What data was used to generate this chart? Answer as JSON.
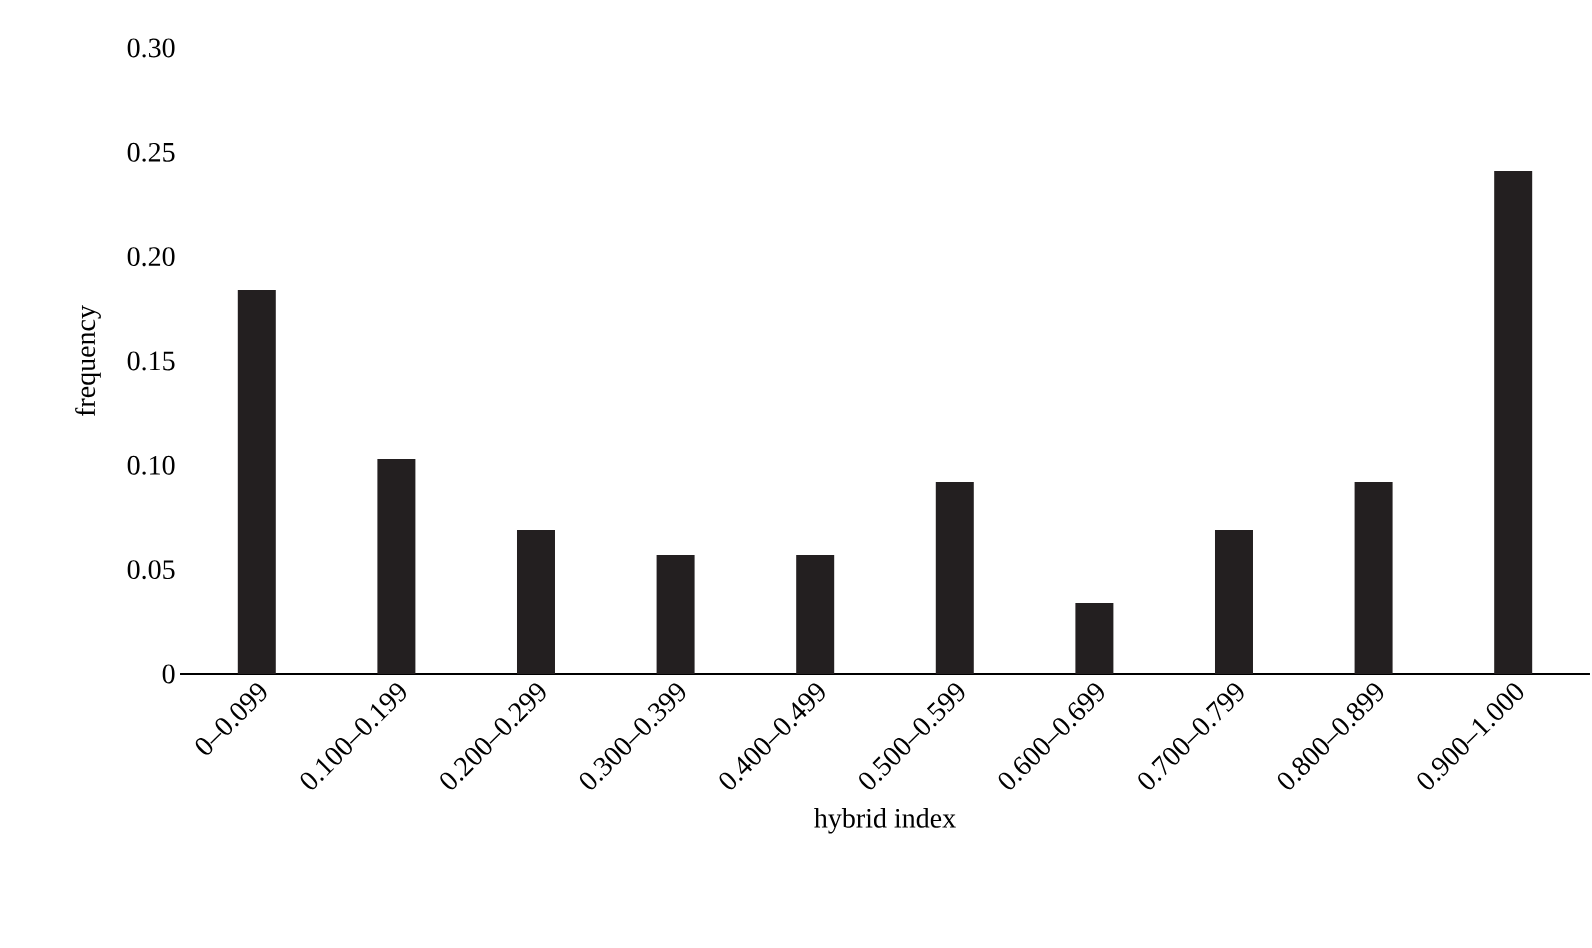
{
  "chart_data": {
    "type": "bar",
    "xlabel": "hybrid index",
    "ylabel": "frequency",
    "categories": [
      "0–0.099",
      "0.100–0.199",
      "0.200–0.299",
      "0.300–0.399",
      "0.400–0.499",
      "0.500–0.599",
      "0.600–0.699",
      "0.700–0.799",
      "0.800–0.899",
      "0.900–1.000"
    ],
    "values": [
      0.184,
      0.103,
      0.069,
      0.057,
      0.057,
      0.092,
      0.034,
      0.069,
      0.092,
      0.241
    ],
    "color": "#231f20",
    "ylim": [
      0,
      0.3
    ],
    "yticks": [
      0,
      {
        "value": 0.05,
        "label": "0.05"
      },
      {
        "value": 0.1,
        "label": "0.10"
      },
      {
        "value": 0.15,
        "label": "0.15"
      },
      {
        "value": 0.2,
        "label": "0.20"
      },
      {
        "value": 0.25,
        "label": "0.25"
      },
      {
        "value": 0.3,
        "label": "0.30"
      }
    ]
  }
}
